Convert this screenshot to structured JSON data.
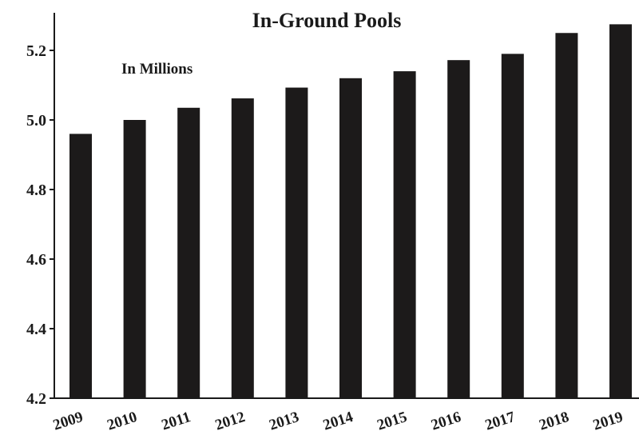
{
  "chart_data": {
    "type": "bar",
    "title": "In-Ground Pools",
    "subtitle": "In Millions",
    "categories": [
      "2009",
      "2010",
      "2011",
      "2012",
      "2013",
      "2014",
      "2015",
      "2016",
      "2017",
      "2018",
      "2019"
    ],
    "values": [
      4.96,
      5.0,
      5.035,
      5.062,
      5.093,
      5.12,
      5.14,
      5.172,
      5.19,
      5.25,
      5.275
    ],
    "yticks": [
      "4.2",
      "4.4",
      "4.6",
      "4.8",
      "5.0",
      "5.2"
    ],
    "ylim": [
      4.2,
      5.3
    ],
    "xlabel": "",
    "ylabel": "",
    "grid": false,
    "bar_color": "#1c1a1a"
  }
}
